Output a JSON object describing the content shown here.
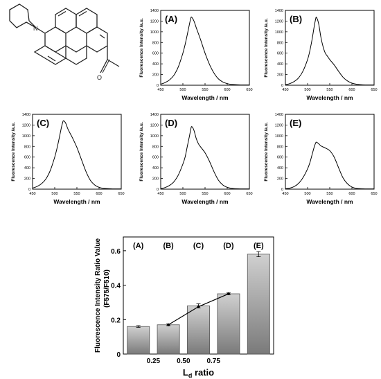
{
  "chart_data": [
    {
      "type": "line",
      "panel_label": "(A)",
      "xlabel": "Wavelength / nm",
      "ylabel": "Fluorescence Intensity /a.u.",
      "xlim": [
        450,
        650
      ],
      "ylim": [
        0,
        1400
      ],
      "xticks": [
        450,
        500,
        550,
        600,
        650
      ],
      "yticks": [
        0,
        200,
        400,
        600,
        800,
        1000,
        1200,
        1400
      ],
      "series": [
        {
          "x": [
            450,
            460,
            470,
            480,
            490,
            500,
            505,
            510,
            515,
            518,
            520,
            525,
            530,
            540,
            550,
            560,
            570,
            580,
            590,
            600,
            610,
            620,
            630,
            640,
            650
          ],
          "y": [
            20,
            50,
            100,
            190,
            350,
            600,
            760,
            950,
            1150,
            1260,
            1270,
            1200,
            1080,
            850,
            600,
            390,
            230,
            120,
            60,
            30,
            15,
            10,
            5,
            5,
            5
          ]
        }
      ]
    },
    {
      "type": "line",
      "panel_label": "(B)",
      "xlabel": "Wavelength / nm",
      "ylabel": "Fluorescence Intensity /a.u.",
      "xlim": [
        450,
        650
      ],
      "ylim": [
        0,
        1400
      ],
      "xticks": [
        450,
        500,
        550,
        600,
        650
      ],
      "yticks": [
        0,
        200,
        400,
        600,
        800,
        1000,
        1200,
        1400
      ],
      "series": [
        {
          "x": [
            450,
            460,
            470,
            480,
            490,
            500,
            505,
            510,
            515,
            518,
            520,
            525,
            530,
            535,
            540,
            545,
            550,
            560,
            570,
            580,
            590,
            600,
            610,
            620,
            630,
            640,
            650
          ],
          "y": [
            10,
            30,
            70,
            140,
            270,
            480,
            640,
            850,
            1100,
            1230,
            1270,
            1150,
            900,
            720,
            600,
            540,
            480,
            380,
            260,
            150,
            80,
            40,
            20,
            10,
            5,
            5,
            5
          ]
        }
      ]
    },
    {
      "type": "line",
      "panel_label": "(C)",
      "xlabel": "Wavelength / nm",
      "ylabel": "Fluorescence Intensity /a.u.",
      "xlim": [
        450,
        650
      ],
      "ylim": [
        0,
        1400
      ],
      "xticks": [
        450,
        500,
        550,
        600,
        650
      ],
      "yticks": [
        0,
        200,
        400,
        600,
        800,
        1000,
        1200,
        1400
      ],
      "series": [
        {
          "x": [
            450,
            460,
            470,
            480,
            490,
            500,
            505,
            510,
            515,
            518,
            520,
            525,
            530,
            540,
            550,
            560,
            570,
            580,
            590,
            600,
            610,
            620,
            630,
            640,
            650
          ],
          "y": [
            20,
            50,
            100,
            190,
            350,
            600,
            760,
            950,
            1150,
            1250,
            1280,
            1230,
            1120,
            960,
            780,
            560,
            340,
            170,
            80,
            35,
            15,
            10,
            5,
            5,
            5
          ]
        }
      ]
    },
    {
      "type": "line",
      "panel_label": "(D)",
      "xlabel": "Wavelength / nm",
      "ylabel": "Fluorescence Intensity /a.u.",
      "xlim": [
        450,
        650
      ],
      "ylim": [
        0,
        1400
      ],
      "xticks": [
        450,
        500,
        550,
        600,
        650
      ],
      "yticks": [
        0,
        200,
        400,
        600,
        800,
        1000,
        1200,
        1400
      ],
      "series": [
        {
          "x": [
            450,
            460,
            470,
            480,
            490,
            500,
            505,
            510,
            515,
            518,
            520,
            525,
            530,
            535,
            540,
            550,
            560,
            570,
            580,
            590,
            600,
            610,
            620,
            630,
            640,
            650
          ],
          "y": [
            10,
            30,
            70,
            140,
            270,
            470,
            600,
            800,
            1000,
            1130,
            1170,
            1100,
            950,
            850,
            790,
            680,
            520,
            330,
            170,
            80,
            35,
            15,
            8,
            5,
            5,
            5
          ]
        }
      ]
    },
    {
      "type": "line",
      "panel_label": "(E)",
      "xlabel": "Wavelength / nm",
      "ylabel": "Fluorescence Intensity /a.u.",
      "xlim": [
        450,
        650
      ],
      "ylim": [
        0,
        1400
      ],
      "xticks": [
        450,
        500,
        550,
        600,
        650
      ],
      "yticks": [
        0,
        200,
        400,
        600,
        800,
        1000,
        1200,
        1400
      ],
      "series": [
        {
          "x": [
            450,
            460,
            470,
            480,
            490,
            500,
            505,
            510,
            515,
            518,
            520,
            525,
            530,
            535,
            540,
            550,
            560,
            570,
            580,
            590,
            600,
            610,
            620,
            630,
            640,
            650
          ],
          "y": [
            10,
            20,
            50,
            110,
            220,
            380,
            490,
            640,
            790,
            860,
            880,
            850,
            810,
            790,
            770,
            720,
            600,
            400,
            210,
            100,
            40,
            15,
            8,
            5,
            5,
            5
          ]
        }
      ]
    },
    {
      "type": "bar",
      "ylabel": "Fluorescence Intensity Ratio Value",
      "ylabel_sub": "(F575/F510)",
      "xlabel_main": "L",
      "xlabel_sub": "d",
      "xlabel_tail": " ratio",
      "ylim": [
        0,
        0.68
      ],
      "yticks": [
        0.0,
        0.2,
        0.4,
        0.6
      ],
      "ytick_labels": [
        "0",
        "0.2",
        "0.4",
        "0.6"
      ],
      "categories": [
        "(A)",
        "(B)",
        "(C)",
        "(D)",
        "(E)"
      ],
      "values": [
        0.16,
        0.17,
        0.28,
        0.35,
        0.58
      ],
      "errors": [
        0.005,
        0.005,
        0.012,
        0.005,
        0.015
      ],
      "x_tick_labels": [
        "",
        "0.25",
        "0.50",
        "0.75",
        ""
      ],
      "trend_line": {
        "categories": [
          "(B)",
          "(C)",
          "(D)"
        ],
        "values": [
          0.17,
          0.275,
          0.35
        ]
      }
    }
  ]
}
